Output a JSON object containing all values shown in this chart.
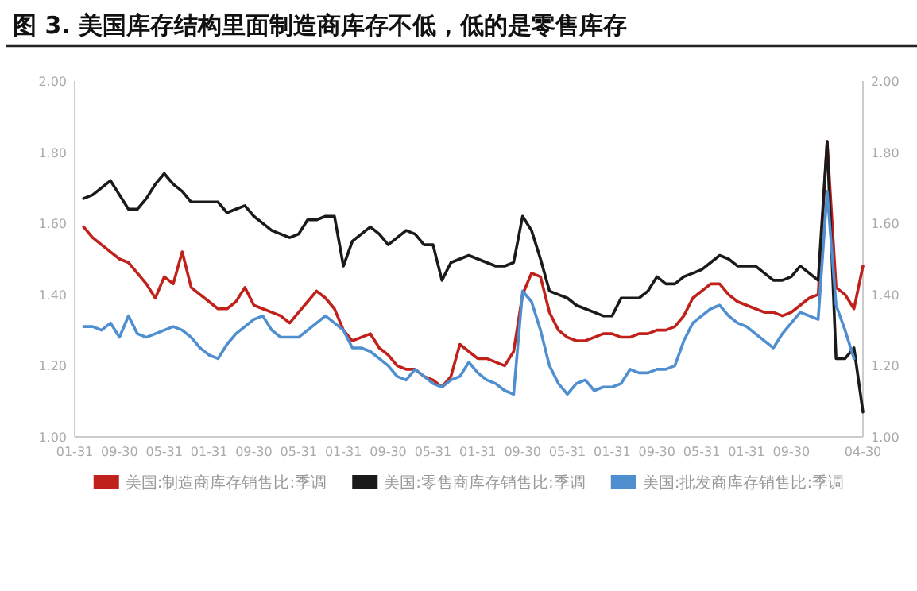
{
  "chart_data": {
    "type": "line",
    "title": "图 3. 美国库存结构里面制造商库存不低，低的是零售库存",
    "categories": [
      "01-31",
      null,
      null,
      null,
      null,
      "09-30",
      null,
      null,
      null,
      null,
      "05-31",
      null,
      null,
      null,
      null,
      "01-31",
      null,
      null,
      null,
      null,
      "09-30",
      null,
      null,
      null,
      null,
      "05-31",
      null,
      null,
      null,
      null,
      "01-31",
      null,
      null,
      null,
      null,
      "09-30",
      null,
      null,
      null,
      null,
      "05-31",
      null,
      null,
      null,
      null,
      "01-31",
      null,
      null,
      null,
      null,
      "09-30",
      null,
      null,
      null,
      null,
      "05-31",
      null,
      null,
      null,
      null,
      "01-31",
      null,
      null,
      null,
      null,
      "09-30",
      null,
      null,
      null,
      null,
      "05-31",
      null,
      null,
      null,
      null,
      "01-31",
      null,
      null,
      null,
      null,
      "09-30",
      null,
      null,
      null,
      null,
      null,
      null,
      null,
      "04-30"
    ],
    "ylim": [
      1.0,
      2.0
    ],
    "yticks": [
      {
        "value": 1.0,
        "label": "1.00"
      },
      {
        "value": 1.2,
        "label": "1.20"
      },
      {
        "value": 1.4,
        "label": "1.40"
      },
      {
        "value": 1.6,
        "label": "1.60"
      },
      {
        "value": 1.8,
        "label": "1.80"
      },
      {
        "value": 2.0,
        "label": "2.00"
      }
    ],
    "y2lim": [
      1.0,
      2.0
    ],
    "y2ticks": [
      {
        "value": 1.0,
        "label": "1.00"
      },
      {
        "value": 1.2,
        "label": "1.20"
      },
      {
        "value": 1.4,
        "label": "1.40"
      },
      {
        "value": 1.6,
        "label": "1.60"
      },
      {
        "value": 1.8,
        "label": "1.80"
      },
      {
        "value": 2.0,
        "label": "2.00"
      }
    ],
    "legend": "bottom",
    "series": [
      {
        "name": "美国:制造商库存销售比:季调",
        "color": "#c0221b",
        "values": [
          null,
          1.59,
          1.56,
          1.54,
          1.52,
          1.5,
          1.49,
          1.46,
          1.43,
          1.39,
          1.45,
          1.43,
          1.52,
          1.42,
          1.4,
          1.38,
          1.36,
          1.36,
          1.38,
          1.42,
          1.37,
          1.36,
          1.35,
          1.34,
          1.32,
          1.35,
          1.38,
          1.41,
          1.39,
          1.36,
          1.3,
          1.27,
          1.28,
          1.29,
          1.25,
          1.23,
          1.2,
          1.19,
          1.19,
          1.17,
          1.16,
          1.14,
          1.17,
          1.26,
          1.24,
          1.22,
          1.22,
          1.21,
          1.2,
          1.24,
          1.4,
          1.46,
          1.45,
          1.35,
          1.3,
          1.28,
          1.27,
          1.27,
          1.28,
          1.29,
          1.29,
          1.28,
          1.28,
          1.29,
          1.29,
          1.3,
          1.3,
          1.31,
          1.34,
          1.39,
          1.41,
          1.43,
          1.43,
          1.4,
          1.38,
          1.37,
          1.36,
          1.35,
          1.35,
          1.34,
          1.35,
          1.37,
          1.39,
          1.4,
          1.83,
          1.42,
          1.4,
          1.36,
          1.48
        ]
      },
      {
        "name": "美国:零售商库存销售比:季调",
        "color": "#1a1a1a",
        "values": [
          null,
          1.67,
          1.68,
          1.7,
          1.72,
          1.68,
          1.64,
          1.64,
          1.67,
          1.71,
          1.74,
          1.71,
          1.69,
          1.66,
          1.66,
          1.66,
          1.66,
          1.63,
          1.64,
          1.65,
          1.62,
          1.6,
          1.58,
          1.57,
          1.56,
          1.57,
          1.61,
          1.61,
          1.62,
          1.62,
          1.48,
          1.55,
          1.57,
          1.59,
          1.57,
          1.54,
          1.56,
          1.58,
          1.57,
          1.54,
          1.54,
          1.44,
          1.49,
          1.5,
          1.51,
          1.5,
          1.49,
          1.48,
          1.48,
          1.49,
          1.62,
          1.58,
          1.5,
          1.41,
          1.4,
          1.39,
          1.37,
          1.36,
          1.35,
          1.34,
          1.34,
          1.39,
          1.39,
          1.39,
          1.41,
          1.45,
          1.43,
          1.43,
          1.45,
          1.46,
          1.47,
          1.49,
          1.51,
          1.5,
          1.48,
          1.48,
          1.48,
          1.46,
          1.44,
          1.44,
          1.45,
          1.48,
          1.46,
          1.44,
          1.83,
          1.22,
          1.22,
          1.25,
          1.07
        ]
      },
      {
        "name": "美国:批发商库存销售比:季调",
        "color": "#4f8fcf",
        "values": [
          null,
          1.31,
          1.31,
          1.3,
          1.32,
          1.28,
          1.34,
          1.29,
          1.28,
          1.29,
          1.3,
          1.31,
          1.3,
          1.28,
          1.25,
          1.23,
          1.22,
          1.26,
          1.29,
          1.31,
          1.33,
          1.34,
          1.3,
          1.28,
          1.28,
          1.28,
          1.3,
          1.32,
          1.34,
          1.32,
          1.3,
          1.25,
          1.25,
          1.24,
          1.22,
          1.2,
          1.17,
          1.16,
          1.19,
          1.17,
          1.15,
          1.14,
          1.16,
          1.17,
          1.21,
          1.18,
          1.16,
          1.15,
          1.13,
          1.12,
          1.41,
          1.38,
          1.3,
          1.2,
          1.15,
          1.12,
          1.15,
          1.16,
          1.13,
          1.14,
          1.14,
          1.15,
          1.19,
          1.18,
          1.18,
          1.19,
          1.19,
          1.2,
          1.27,
          1.32,
          1.34,
          1.36,
          1.37,
          1.34,
          1.32,
          1.31,
          1.29,
          1.27,
          1.25,
          1.29,
          1.32,
          1.35,
          1.34,
          1.33,
          1.69,
          1.37,
          1.3,
          1.22,
          null
        ]
      }
    ]
  }
}
